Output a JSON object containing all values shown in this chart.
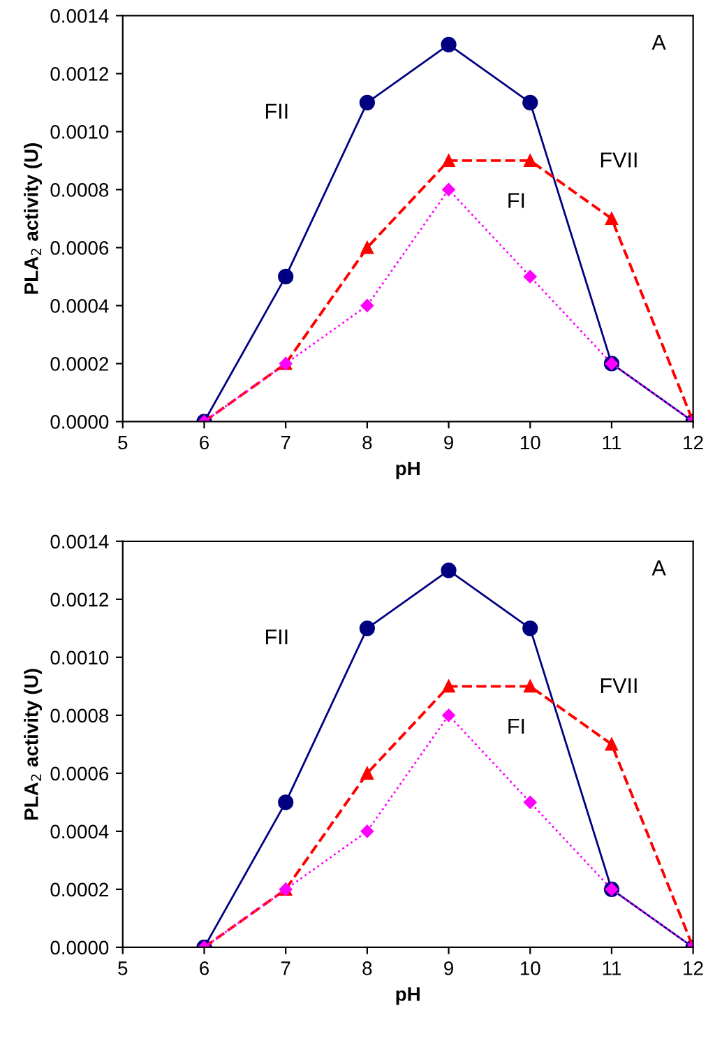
{
  "chart_data": [
    {
      "type": "line",
      "xlabel": "pH",
      "ylabel": "PLA$_{2}$ activity (U)",
      "x": [
        6,
        7,
        8,
        9,
        10,
        11,
        12
      ],
      "xlim": [
        5,
        12
      ],
      "xticks": [
        5,
        6,
        7,
        8,
        9,
        10,
        11,
        12
      ],
      "ylim": [
        0,
        0.0014
      ],
      "yticks": [
        {
          "value": 0,
          "label": "0.0000"
        },
        {
          "value": 0.0002,
          "label": "0.0002"
        },
        {
          "value": 0.0004,
          "label": "0.0004"
        },
        {
          "value": 0.0006,
          "label": "0.0006"
        },
        {
          "value": 0.0008,
          "label": "0.0008"
        },
        {
          "value": 0.001,
          "label": "0.0010"
        },
        {
          "value": 0.0012,
          "label": "0.0012"
        },
        {
          "value": 0.0014,
          "label": "0.0014"
        }
      ],
      "grid": false,
      "series": [
        {
          "color": "#000080",
          "marker": "circle",
          "line_style": "solid",
          "values": [
            0,
            0.0005,
            0.0011,
            0.0013,
            0.0011,
            0.0002,
            0
          ]
        },
        {
          "color": "#ff0000",
          "marker": "triangle",
          "line_style": "dashed",
          "values": [
            0,
            0.0002,
            0.0006,
            0.0009,
            0.0009,
            0.0007,
            0
          ]
        },
        {
          "color": "#ff00ff",
          "marker": "diamond",
          "line_style": "dotted",
          "values": [
            0,
            0.0002,
            0.0004,
            0.0008,
            0.0005,
            0.0002,
            0
          ]
        }
      ],
      "annotations": [
        "FII",
        "FVII",
        "FI",
        "A"
      ]
    },
    {
      "type": "line",
      "xlabel": "pH",
      "ylabel": "PLA$_{2}$ activity (U)",
      "x": [
        6,
        7,
        8,
        9,
        10,
        11,
        12
      ],
      "xlim": [
        5,
        12
      ],
      "xticks": [
        5,
        6,
        7,
        8,
        9,
        10,
        11,
        12
      ],
      "ylim": [
        0,
        0.0014
      ],
      "yticks": [
        {
          "value": 0,
          "label": "0.0000"
        },
        {
          "value": 0.0002,
          "label": "0.0002"
        },
        {
          "value": 0.0004,
          "label": "0.0004"
        },
        {
          "value": 0.0006,
          "label": "0.0006"
        },
        {
          "value": 0.0008,
          "label": "0.0008"
        },
        {
          "value": 0.001,
          "label": "0.0010"
        },
        {
          "value": 0.0012,
          "label": "0.0012"
        },
        {
          "value": 0.0014,
          "label": "0.0014"
        }
      ],
      "grid": false,
      "series": [
        {
          "color": "#000080",
          "marker": "circle",
          "line_style": "solid",
          "values": [
            0,
            0.0005,
            0.0011,
            0.0013,
            0.0011,
            0.0002,
            0
          ]
        },
        {
          "color": "#ff0000",
          "marker": "triangle",
          "line_style": "dashed",
          "values": [
            0,
            0.0002,
            0.0006,
            0.0009,
            0.0009,
            0.0007,
            0
          ]
        },
        {
          "color": "#ff00ff",
          "marker": "diamond",
          "line_style": "dotted",
          "values": [
            0,
            0.0002,
            0.0004,
            0.0008,
            0.0005,
            0.0002,
            0
          ]
        }
      ],
      "annotations": [
        "FII",
        "FVII",
        "FI",
        "A"
      ]
    }
  ]
}
